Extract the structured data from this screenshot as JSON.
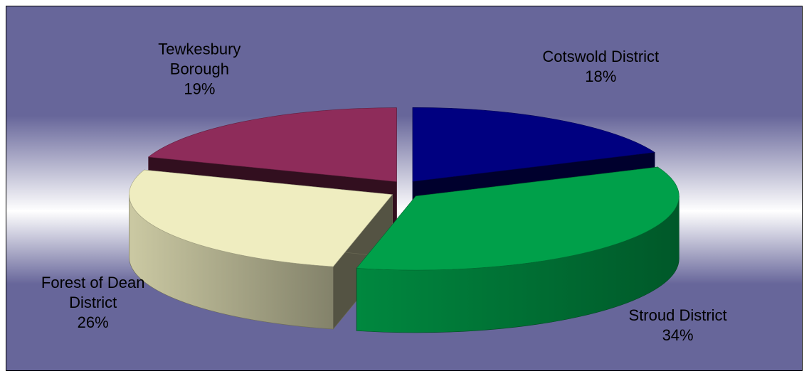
{
  "chart_data": {
    "type": "pie",
    "style": "3d-exploded",
    "title": "",
    "slices": [
      {
        "label_lines": [
          "Cotswold District"
        ],
        "percent_label": "18%",
        "value": 18,
        "color": "#000080"
      },
      {
        "label_lines": [
          "Stroud District"
        ],
        "percent_label": "34%",
        "value": 34,
        "color": "#00a04a"
      },
      {
        "label_lines": [
          "Forest of Dean",
          "District"
        ],
        "percent_label": "26%",
        "value": 26,
        "color": "#efedc0"
      },
      {
        "label_lines": [
          "Tewkesbury",
          "Borough"
        ],
        "percent_label": "19%",
        "value": 19,
        "color": "#8e2c5a"
      }
    ],
    "legend": "none",
    "background": {
      "top": "#67669a",
      "middle": "#ffffff",
      "bottom": "#67669a"
    }
  }
}
